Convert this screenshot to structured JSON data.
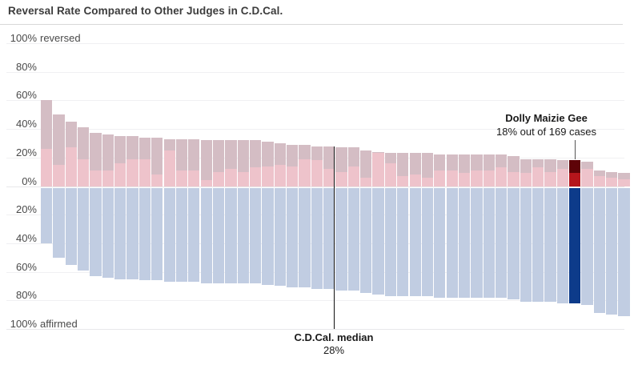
{
  "title": "Reversal Rate Compared to Other Judges in C.D.Cal.",
  "colors": {
    "reversed_overlap": "#d4bdc4",
    "reversed_pink": "#eec3cb",
    "affirmed_blue": "#c1cde2",
    "highlight_dark_red": "#5e0308",
    "highlight_red": "#b5161c",
    "highlight_navy": "#0d3b8a",
    "gridline": "#f0f0f2",
    "baseline": "#e8e8ea",
    "median_line": "#111111",
    "pointer_line": "#555555"
  },
  "y_axis": {
    "reversed_ticks": [
      {
        "num": "100%",
        "suffix": "reversed",
        "pct": 100
      },
      {
        "num": "80%",
        "suffix": "",
        "pct": 80
      },
      {
        "num": "60%",
        "suffix": "",
        "pct": 60
      },
      {
        "num": "40%",
        "suffix": "",
        "pct": 40
      },
      {
        "num": "20%",
        "suffix": "",
        "pct": 20
      },
      {
        "num": "0%",
        "suffix": "",
        "pct": 0
      }
    ],
    "affirmed_ticks": [
      {
        "num": "20%",
        "suffix": "",
        "pct": 20
      },
      {
        "num": "40%",
        "suffix": "",
        "pct": 40
      },
      {
        "num": "60%",
        "suffix": "",
        "pct": 60
      },
      {
        "num": "80%",
        "suffix": "",
        "pct": 80
      },
      {
        "num": "100%",
        "suffix": "affirmed",
        "pct": 100
      }
    ]
  },
  "annotations": {
    "highlight": {
      "name": "Dolly Maizie Gee",
      "detail": "18% out of 169 cases"
    },
    "median": {
      "label": "C.D.Cal. median",
      "value": "28%"
    }
  },
  "chart_data": {
    "type": "bar",
    "orientation": "diverging-vertical",
    "units": "percent",
    "description": "Each bar is one C.D.Cal. judge: reversal rate above the zero line (outer muted segment with inner pink segment), affirmed rate below the zero line. Bars sorted by reversal rate descending.",
    "ylim_reversed": [
      0,
      100
    ],
    "ylim_affirmed": [
      0,
      100
    ],
    "grid": true,
    "highlight_index": 43,
    "median_pct": 28,
    "judges": [
      {
        "reversed_pct": 60,
        "inner_pct": 26,
        "affirmed_pct": 40
      },
      {
        "reversed_pct": 50,
        "inner_pct": 15,
        "affirmed_pct": 50
      },
      {
        "reversed_pct": 45,
        "inner_pct": 27,
        "affirmed_pct": 55
      },
      {
        "reversed_pct": 41,
        "inner_pct": 19,
        "affirmed_pct": 59
      },
      {
        "reversed_pct": 37,
        "inner_pct": 11,
        "affirmed_pct": 63
      },
      {
        "reversed_pct": 36,
        "inner_pct": 11,
        "affirmed_pct": 64
      },
      {
        "reversed_pct": 35,
        "inner_pct": 16,
        "affirmed_pct": 65
      },
      {
        "reversed_pct": 35,
        "inner_pct": 19,
        "affirmed_pct": 65
      },
      {
        "reversed_pct": 34,
        "inner_pct": 19,
        "affirmed_pct": 66
      },
      {
        "reversed_pct": 34,
        "inner_pct": 8,
        "affirmed_pct": 66
      },
      {
        "reversed_pct": 33,
        "inner_pct": 25,
        "affirmed_pct": 67
      },
      {
        "reversed_pct": 33,
        "inner_pct": 11,
        "affirmed_pct": 67
      },
      {
        "reversed_pct": 33,
        "inner_pct": 11,
        "affirmed_pct": 67
      },
      {
        "reversed_pct": 32,
        "inner_pct": 4,
        "affirmed_pct": 68
      },
      {
        "reversed_pct": 32,
        "inner_pct": 10,
        "affirmed_pct": 68
      },
      {
        "reversed_pct": 32,
        "inner_pct": 12,
        "affirmed_pct": 68
      },
      {
        "reversed_pct": 32,
        "inner_pct": 10,
        "affirmed_pct": 68
      },
      {
        "reversed_pct": 32,
        "inner_pct": 13,
        "affirmed_pct": 68
      },
      {
        "reversed_pct": 31,
        "inner_pct": 14,
        "affirmed_pct": 69
      },
      {
        "reversed_pct": 30,
        "inner_pct": 15,
        "affirmed_pct": 70
      },
      {
        "reversed_pct": 29,
        "inner_pct": 14,
        "affirmed_pct": 71
      },
      {
        "reversed_pct": 29,
        "inner_pct": 19,
        "affirmed_pct": 71
      },
      {
        "reversed_pct": 28,
        "inner_pct": 18,
        "affirmed_pct": 72
      },
      {
        "reversed_pct": 28,
        "inner_pct": 12,
        "affirmed_pct": 72
      },
      {
        "reversed_pct": 27,
        "inner_pct": 10,
        "affirmed_pct": 73
      },
      {
        "reversed_pct": 27,
        "inner_pct": 14,
        "affirmed_pct": 73
      },
      {
        "reversed_pct": 25,
        "inner_pct": 6,
        "affirmed_pct": 75
      },
      {
        "reversed_pct": 24,
        "inner_pct": 23,
        "affirmed_pct": 76
      },
      {
        "reversed_pct": 23,
        "inner_pct": 16,
        "affirmed_pct": 77
      },
      {
        "reversed_pct": 23,
        "inner_pct": 7,
        "affirmed_pct": 77
      },
      {
        "reversed_pct": 23,
        "inner_pct": 8,
        "affirmed_pct": 77
      },
      {
        "reversed_pct": 23,
        "inner_pct": 6,
        "affirmed_pct": 77
      },
      {
        "reversed_pct": 22,
        "inner_pct": 11,
        "affirmed_pct": 78
      },
      {
        "reversed_pct": 22,
        "inner_pct": 11,
        "affirmed_pct": 78
      },
      {
        "reversed_pct": 22,
        "inner_pct": 9,
        "affirmed_pct": 78
      },
      {
        "reversed_pct": 22,
        "inner_pct": 11,
        "affirmed_pct": 78
      },
      {
        "reversed_pct": 22,
        "inner_pct": 11,
        "affirmed_pct": 78
      },
      {
        "reversed_pct": 22,
        "inner_pct": 13,
        "affirmed_pct": 78
      },
      {
        "reversed_pct": 21,
        "inner_pct": 10,
        "affirmed_pct": 79
      },
      {
        "reversed_pct": 19,
        "inner_pct": 9,
        "affirmed_pct": 81
      },
      {
        "reversed_pct": 19,
        "inner_pct": 13,
        "affirmed_pct": 81
      },
      {
        "reversed_pct": 19,
        "inner_pct": 10,
        "affirmed_pct": 81
      },
      {
        "reversed_pct": 18,
        "inner_pct": 12,
        "affirmed_pct": 82
      },
      {
        "reversed_pct": 18,
        "inner_pct": 9,
        "affirmed_pct": 82,
        "name": "Dolly Maizie Gee",
        "cases": 169,
        "highlighted": true
      },
      {
        "reversed_pct": 17,
        "inner_pct": 12,
        "affirmed_pct": 83
      },
      {
        "reversed_pct": 11,
        "inner_pct": 7,
        "affirmed_pct": 89
      },
      {
        "reversed_pct": 10,
        "inner_pct": 6,
        "affirmed_pct": 90
      },
      {
        "reversed_pct": 9,
        "inner_pct": 5,
        "affirmed_pct": 91
      }
    ]
  }
}
